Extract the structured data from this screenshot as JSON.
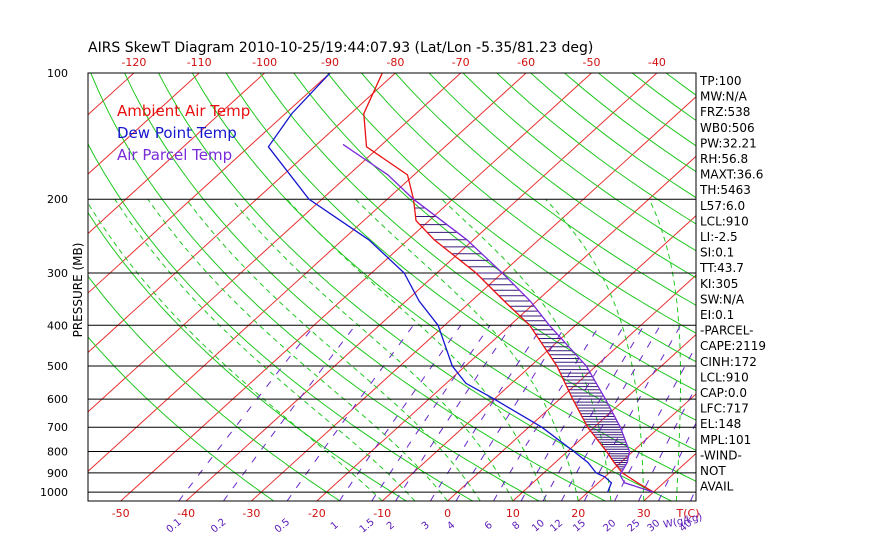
{
  "chart_data": {
    "type": "line",
    "title": "AIRS SkewT Diagram 2010-10-25/19:44:07.93 (Lat/Lon -5.35/81.23 deg)",
    "ylabel": "PRESSURE (MB)",
    "x_unit_label": "T(C)",
    "mixing_ratio_unit_label": "W(g/kg)",
    "y_scale": "log",
    "ylim": [
      1050,
      100
    ],
    "xlim_at_surface": [
      -55,
      38
    ],
    "top_temperature_ticks": [
      -120,
      -110,
      -100,
      -90,
      -80,
      -70,
      -60,
      -50,
      -40
    ],
    "bottom_temperature_ticks": [
      -50,
      -40,
      -30,
      -20,
      -10,
      0,
      10,
      20,
      30
    ],
    "pressure_ticks": [
      100,
      200,
      300,
      400,
      500,
      600,
      700,
      800,
      900,
      1000
    ],
    "mixing_ratio_labels": [
      "0.1",
      "0.2",
      "0.5",
      "1",
      "1.5",
      "2",
      "3",
      "4",
      "6",
      "8",
      "10",
      "12",
      "15",
      "20",
      "25",
      "30",
      "40"
    ],
    "mixing_ratio_values": [
      0.1,
      0.2,
      0.5,
      1,
      1.5,
      2,
      3,
      4,
      6,
      8,
      10,
      12,
      15,
      20,
      25,
      30,
      40
    ],
    "legend": [
      {
        "label": "Ambient Air Temp",
        "color": "#e81010"
      },
      {
        "label": "Dew Point Temp",
        "color": "#1515d0"
      },
      {
        "label": "Air Parcel Temp",
        "color": "#7a2ad8"
      }
    ],
    "legend_position": "top-left",
    "grid": true,
    "series": [
      {
        "name": "Ambient Air Temp",
        "color": "#e81010",
        "p": [
          1000,
          950,
          900,
          850,
          800,
          700,
          600,
          500,
          400,
          350,
          300,
          250,
          225,
          200,
          175,
          150,
          125,
          100
        ],
        "t": [
          30,
          26,
          22,
          19,
          16,
          9,
          2,
          -6,
          -17,
          -25,
          -34,
          -46,
          -52,
          -56,
          -61,
          -72,
          -78,
          -82
        ]
      },
      {
        "name": "Dew Point Temp",
        "color": "#1515d0",
        "p": [
          1000,
          950,
          920,
          900,
          850,
          800,
          700,
          600,
          550,
          500,
          400,
          350,
          300,
          250,
          200,
          150,
          125,
          100
        ],
        "t": [
          23,
          22,
          20,
          18,
          15,
          11,
          2,
          -10,
          -17,
          -22,
          -31,
          -38,
          -45,
          -56,
          -72,
          -87,
          -89,
          -90
        ]
      },
      {
        "name": "Air Parcel Temp",
        "color": "#7a2ad8",
        "p": [
          1000,
          950,
          910,
          850,
          800,
          700,
          600,
          500,
          400,
          350,
          300,
          250,
          200,
          175,
          148
        ],
        "t": [
          30,
          24,
          22,
          21,
          19.5,
          14,
          7,
          -1.5,
          -14,
          -21,
          -30,
          -41,
          -56,
          -64,
          -76
        ]
      }
    ]
  },
  "indices": [
    "TP:100",
    "MW:N/A",
    "FRZ:538",
    "WB0:506",
    "PW:32.21",
    "RH:56.8",
    "MAXT:36.6",
    "TH:5463",
    "L57:6.0",
    "LCL:910",
    "LI:-2.5",
    "SI:0.1",
    "TT:43.7",
    "KI:305",
    "SW:N/A",
    "EI:0.1",
    "-PARCEL-",
    "CAPE:2119",
    "CINH:172",
    "LCL:910",
    "CAP:0.0",
    "LFC:717",
    "EL:148",
    "MPL:101",
    "-WIND-",
    "NOT",
    "AVAIL"
  ]
}
